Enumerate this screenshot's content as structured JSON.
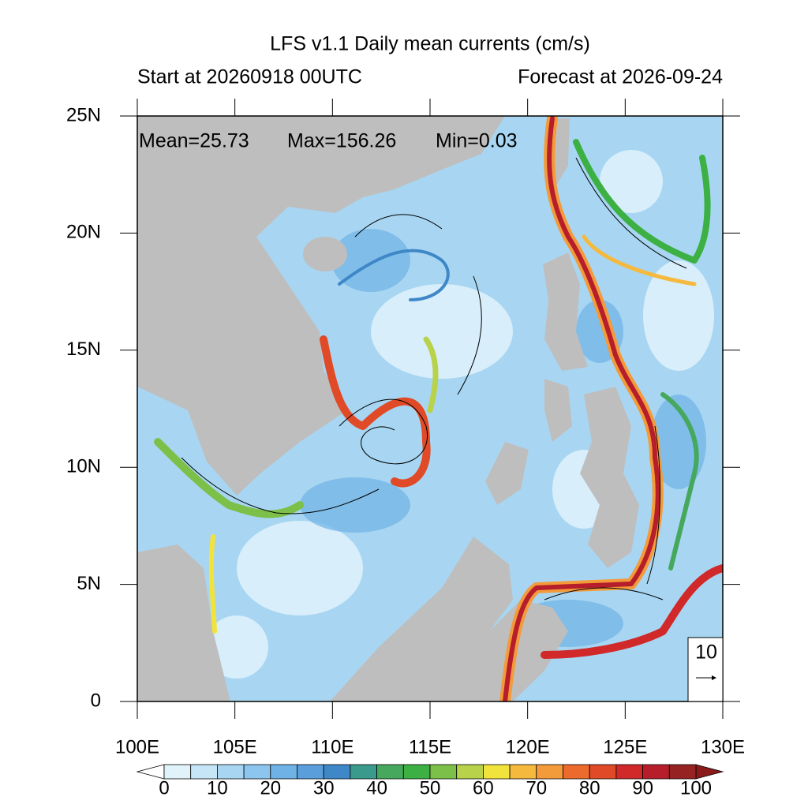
{
  "chart_data": {
    "type": "contour-map",
    "title": "LFS v1.1 Daily mean currents (cm/s)",
    "subtitle_left": "Start at 20260918 00UTC",
    "subtitle_right": "Forecast at 2026-09-24",
    "annotations": [
      "Mean=25.73",
      "Max=156.26",
      "Min=0.03"
    ],
    "xlim": [
      100,
      130
    ],
    "ylim": [
      0,
      25
    ],
    "xticks": [
      {
        "value": 100,
        "label": "100E"
      },
      {
        "value": 105,
        "label": "105E"
      },
      {
        "value": 110,
        "label": "110E"
      },
      {
        "value": 115,
        "label": "115E"
      },
      {
        "value": 120,
        "label": "120E"
      },
      {
        "value": 125,
        "label": "125E"
      },
      {
        "value": 130,
        "label": "130E"
      }
    ],
    "yticks": [
      0,
      {
        "value": 5,
        "label": "5N"
      },
      {
        "value": 10,
        "label": "10N"
      },
      {
        "value": 15,
        "label": "15N"
      },
      {
        "value": 20,
        "label": "20N"
      },
      {
        "value": 25,
        "label": "25N"
      }
    ],
    "reference_vector": 10,
    "land_color": "#bebebe",
    "colorbar": {
      "levels": [
        0,
        5,
        10,
        15,
        20,
        25,
        30,
        35,
        40,
        45,
        50,
        55,
        60,
        65,
        70,
        75,
        80,
        85,
        90,
        95,
        100
      ],
      "ticks": [
        0,
        10,
        20,
        30,
        40,
        50,
        60,
        70,
        80,
        90,
        100
      ],
      "colors": [
        "#e0f3fb",
        "#c6e6f7",
        "#a8d6f2",
        "#8cc6ee",
        "#6fb2e6",
        "#5a9fdc",
        "#3f88c8",
        "#3a9a8c",
        "#45a85c",
        "#3cb043",
        "#7cc04a",
        "#b8d24a",
        "#f2e33c",
        "#f5b93e",
        "#f39a3a",
        "#ec6a2c",
        "#e04a26",
        "#d1282a",
        "#b51e2a",
        "#962222"
      ],
      "under_color": "#ffffff",
      "over_color": "#8b1a1a"
    }
  }
}
